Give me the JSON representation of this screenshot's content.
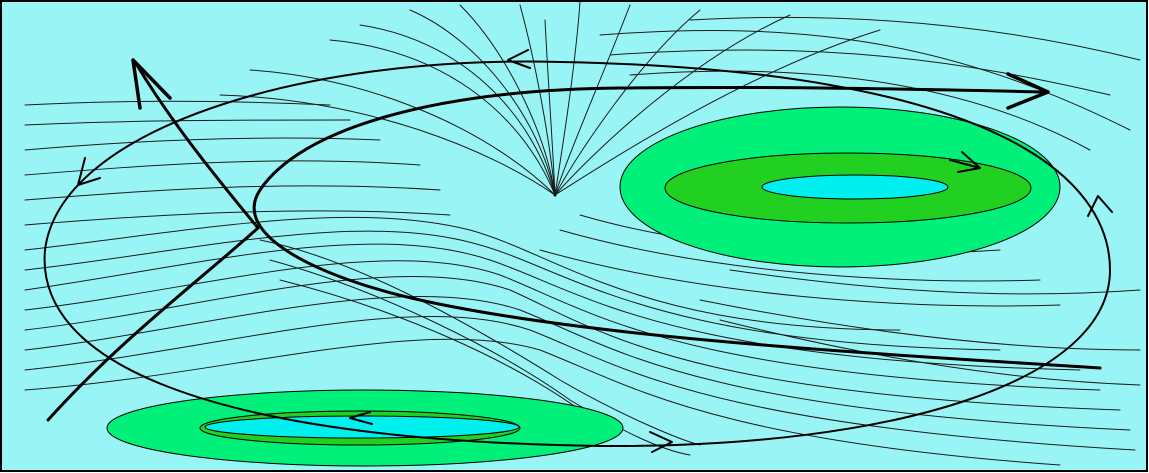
{
  "diagram": {
    "background_color": "#99f5f5",
    "border_color": "#000000",
    "zone_colors": {
      "outer": "#00f07a",
      "middle": "#22d022",
      "inner": "#00f0f0"
    },
    "regions": [
      {
        "name": "upper-right-vortex",
        "rings": 3
      },
      {
        "name": "lower-left-vortex",
        "rings": 3
      }
    ],
    "features": [
      "streamlines",
      "closed-loop-trajectory",
      "spiral-trajectory",
      "diagonal-arrow",
      "convergence-point"
    ]
  }
}
